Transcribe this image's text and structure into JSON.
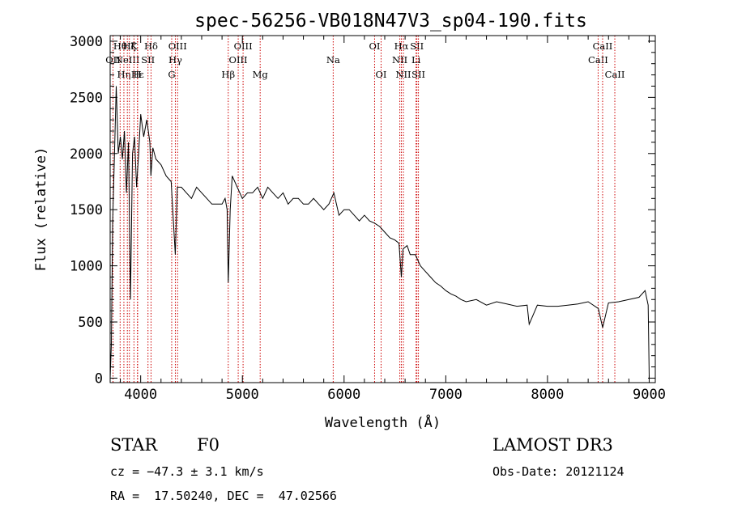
{
  "chart_data": {
    "type": "line",
    "title": "spec-56256-VB018N47V3_sp04-190.fits",
    "xlabel": "Wavelength (Å)",
    "ylabel": "Flux (relative)",
    "xlim": [
      3700,
      9060
    ],
    "ylim": [
      -40,
      3050
    ],
    "x_ticks": [
      4000,
      5000,
      6000,
      7000,
      8000,
      9000
    ],
    "y_ticks": [
      0,
      500,
      1000,
      1500,
      2000,
      2500,
      3000
    ],
    "series": [
      {
        "name": "flux",
        "x": [
          3700,
          3712,
          3725,
          3740,
          3760,
          3780,
          3800,
          3820,
          3840,
          3860,
          3880,
          3900,
          3920,
          3940,
          3960,
          3980,
          4000,
          4030,
          4060,
          4090,
          4101,
          4120,
          4150,
          4200,
          4250,
          4300,
          4340,
          4360,
          4400,
          4450,
          4500,
          4550,
          4600,
          4650,
          4700,
          4750,
          4800,
          4830,
          4850,
          4861,
          4880,
          4900,
          4950,
          5000,
          5050,
          5100,
          5150,
          5200,
          5250,
          5300,
          5350,
          5400,
          5450,
          5500,
          5550,
          5600,
          5650,
          5700,
          5750,
          5800,
          5850,
          5900,
          5950,
          6000,
          6050,
          6100,
          6150,
          6200,
          6250,
          6300,
          6350,
          6400,
          6450,
          6500,
          6540,
          6563,
          6580,
          6620,
          6650,
          6700,
          6750,
          6800,
          6850,
          6900,
          6950,
          7000,
          7050,
          7100,
          7150,
          7200,
          7300,
          7400,
          7500,
          7600,
          7700,
          7800,
          7820,
          7900,
          8000,
          8100,
          8200,
          8300,
          8400,
          8500,
          8542,
          8600,
          8700,
          8800,
          8900,
          8960,
          8990,
          9000
        ],
        "y": [
          0,
          300,
          1400,
          1900,
          2600,
          2000,
          2150,
          1950,
          2200,
          1650,
          2100,
          700,
          2000,
          2150,
          1700,
          2000,
          2350,
          2150,
          2300,
          2100,
          1800,
          2050,
          1950,
          1900,
          1800,
          1750,
          1100,
          1700,
          1700,
          1650,
          1600,
          1700,
          1650,
          1600,
          1550,
          1550,
          1550,
          1600,
          1500,
          850,
          1500,
          1800,
          1700,
          1600,
          1650,
          1650,
          1700,
          1600,
          1700,
          1650,
          1600,
          1650,
          1550,
          1600,
          1600,
          1550,
          1550,
          1600,
          1550,
          1500,
          1550,
          1650,
          1450,
          1500,
          1500,
          1450,
          1400,
          1450,
          1400,
          1380,
          1350,
          1300,
          1250,
          1230,
          1200,
          900,
          1150,
          1180,
          1100,
          1100,
          1000,
          950,
          900,
          850,
          820,
          780,
          750,
          730,
          700,
          680,
          700,
          650,
          680,
          660,
          640,
          650,
          480,
          650,
          640,
          640,
          650,
          660,
          680,
          620,
          450,
          670,
          680,
          700,
          720,
          780,
          650,
          0
        ]
      }
    ],
    "line_color": "#000000",
    "marker_color": "#cc0000",
    "spectral_lines": [
      {
        "x": 3728,
        "label": "OII",
        "row": 2
      },
      {
        "x": 3798,
        "label": "Hθ",
        "row": 1
      },
      {
        "x": 3835,
        "label": "Hη",
        "row": 3
      },
      {
        "x": 3869,
        "label": "NeIII",
        "row": 2
      },
      {
        "x": 3889,
        "label": "Hζ",
        "row": 1
      },
      {
        "x": 3934,
        "label": "K",
        "row": 1
      },
      {
        "x": 3968,
        "label": "H",
        "row": 3
      },
      {
        "x": 3970,
        "label": "Hε",
        "row": 3
      },
      {
        "x": 4072,
        "label": "SII",
        "row": 2
      },
      {
        "x": 4102,
        "label": "Hδ",
        "row": 1
      },
      {
        "x": 4305,
        "label": "G",
        "row": 3
      },
      {
        "x": 4341,
        "label": "Hγ",
        "row": 2
      },
      {
        "x": 4363,
        "label": "OIII",
        "row": 1
      },
      {
        "x": 4861,
        "label": "Hβ",
        "row": 3
      },
      {
        "x": 4959,
        "label": "OIII",
        "row": 2
      },
      {
        "x": 5007,
        "label": "OIII",
        "row": 1
      },
      {
        "x": 5175,
        "label": "Mg",
        "row": 3
      },
      {
        "x": 5893,
        "label": "Na",
        "row": 2
      },
      {
        "x": 6300,
        "label": "OI",
        "row": 1
      },
      {
        "x": 6364,
        "label": "OI",
        "row": 3
      },
      {
        "x": 6548,
        "label": "NII",
        "row": 2
      },
      {
        "x": 6563,
        "label": "Hα",
        "row": 1
      },
      {
        "x": 6583,
        "label": "NII",
        "row": 3
      },
      {
        "x": 6708,
        "label": "Li",
        "row": 2
      },
      {
        "x": 6716,
        "label": "SII",
        "row": 1
      },
      {
        "x": 6731,
        "label": "SII",
        "row": 3
      },
      {
        "x": 8498,
        "label": "CaII",
        "row": 2
      },
      {
        "x": 8542,
        "label": "CaII",
        "row": 1
      },
      {
        "x": 8662,
        "label": "CaII",
        "row": 3
      }
    ]
  },
  "info": {
    "class": "STAR",
    "subclass": "F0",
    "survey": "LAMOST DR3",
    "cz": "cz = −47.3 ± 3.1 km/s",
    "obs_date": "Obs-Date: 20121124",
    "radec": "RA =  17.50240, DEC =  47.02566"
  }
}
